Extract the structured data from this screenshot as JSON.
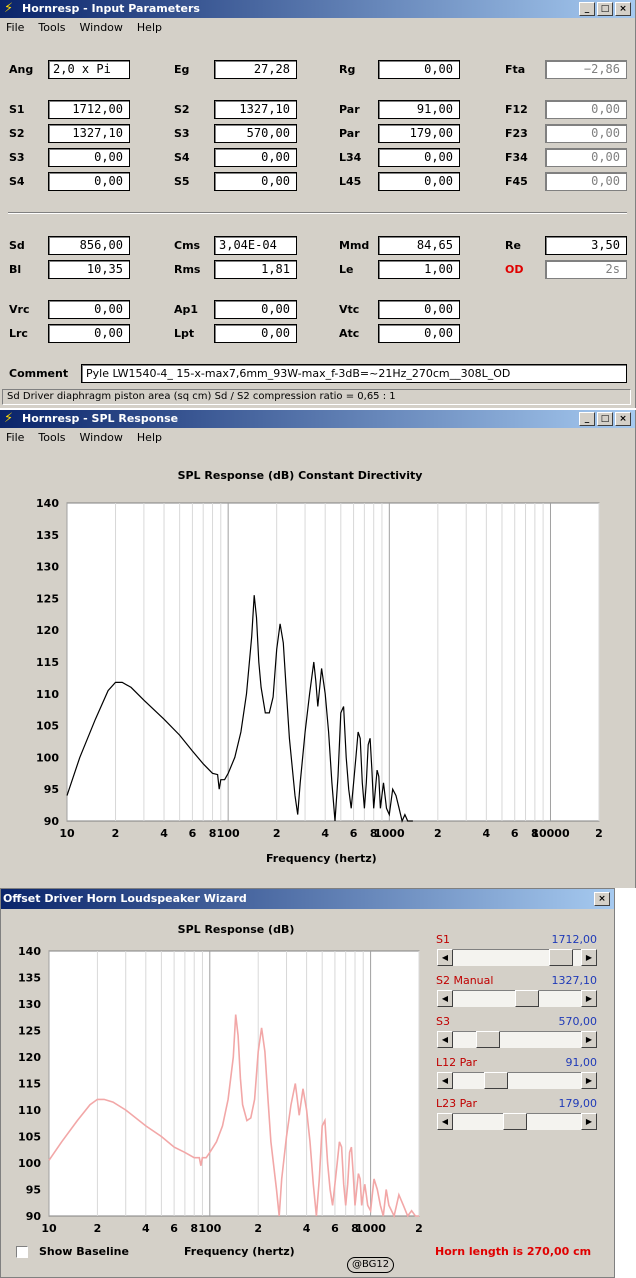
{
  "input_window": {
    "title": "Hornresp - Input Parameters",
    "menu": [
      "File",
      "Tools",
      "Window",
      "Help"
    ],
    "params": {
      "Ang": "2,0 x Pi",
      "Eg": "27,28",
      "Rg": "0,00",
      "Fta": "−2,86",
      "S1": "1712,00",
      "S2a": "1327,10",
      "Par1": "91,00",
      "F12": "0,00",
      "S2": "1327,10",
      "S3a": "570,00",
      "Par2": "179,00",
      "F23": "0,00",
      "S3": "0,00",
      "S4a": "0,00",
      "L34": "0,00",
      "F34": "0,00",
      "S4": "0,00",
      "S5": "0,00",
      "L45": "0,00",
      "F45": "0,00",
      "Sd": "856,00",
      "Cms": "3,04E-04",
      "Mmd": "84,65",
      "Re": "3,50",
      "Bl": "10,35",
      "Rms": "1,81",
      "Le": "1,00",
      "OD": "2s",
      "Vrc": "0,00",
      "Ap1": "0,00",
      "Vtc": "0,00",
      "Lrc": "0,00",
      "Lpt": "0,00",
      "Atc": "0,00"
    },
    "labels": {
      "Ang": "Ang",
      "Eg": "Eg",
      "Rg": "Rg",
      "Fta": "Fta",
      "S1": "S1",
      "S2a": "S2",
      "Par1": "Par",
      "F12": "F12",
      "S2": "S2",
      "S3a": "S3",
      "Par2": "Par",
      "F23": "F23",
      "S3": "S3",
      "S4a": "S4",
      "L34": "L34",
      "F34": "F34",
      "S4": "S4",
      "S5": "S5",
      "L45": "L45",
      "F45": "F45",
      "Sd": "Sd",
      "Cms": "Cms",
      "Mmd": "Mmd",
      "Re": "Re",
      "Bl": "Bl",
      "Rms": "Rms",
      "Le": "Le",
      "OD": "OD",
      "Vrc": "Vrc",
      "Ap1": "Ap1",
      "Vtc": "Vtc",
      "Lrc": "Lrc",
      "Lpt": "Lpt",
      "Atc": "Atc"
    },
    "comment_label": "Comment",
    "comment": "Pyle LW1540-4_ 15-x-max7,6mm_93W-max_f-3dB=~21Hz_270cm__308L_OD",
    "status": "Sd   Driver diaphragm piston area  (sq cm)    Sd / S2 compression ratio = 0,65 : 1"
  },
  "spl_window": {
    "title": "Hornresp - SPL Response",
    "menu": [
      "File",
      "Tools",
      "Window",
      "Help"
    ],
    "chart_title": "SPL Response (dB)    Constant Directivity",
    "xlabel": "Frequency (hertz)"
  },
  "wizard": {
    "title": "Offset Driver Horn Loudspeaker Wizard",
    "chart_title": "SPL Response (dB)",
    "xlabel": "Frequency (hertz)",
    "show_baseline": "Show Baseline",
    "horn_length": "Horn length is 270,00 cm",
    "watermark": "@BG12",
    "sliders": [
      {
        "label": "S1",
        "value": "1712,00",
        "pos": 0.92
      },
      {
        "label": "S2  Manual",
        "value": "1327,10",
        "pos": 0.6
      },
      {
        "label": "S3",
        "value": "570,00",
        "pos": 0.22
      },
      {
        "label": "L12  Par",
        "value": "91,00",
        "pos": 0.3
      },
      {
        "label": "L23  Par",
        "value": "179,00",
        "pos": 0.48
      }
    ]
  },
  "chart_data": [
    {
      "type": "line",
      "title": "SPL Response (dB)    Constant Directivity",
      "xlabel": "Frequency (hertz)",
      "ylabel": "",
      "xscale": "log",
      "xlim": [
        10,
        20000
      ],
      "ylim": [
        90,
        140
      ],
      "yticks": [
        90,
        95,
        100,
        105,
        110,
        115,
        120,
        125,
        130,
        135,
        140
      ],
      "xtick_labels": [
        "10",
        "2",
        "4",
        "6",
        "8",
        "100",
        "2",
        "4",
        "6",
        "8",
        "1000",
        "2",
        "4",
        "6",
        "8",
        "10000",
        "2"
      ],
      "color": "#000000",
      "x": [
        10,
        12,
        15,
        18,
        20,
        22,
        25,
        30,
        40,
        50,
        60,
        70,
        80,
        86,
        88,
        90,
        95,
        100,
        110,
        120,
        130,
        140,
        145,
        150,
        155,
        160,
        170,
        180,
        190,
        200,
        210,
        220,
        230,
        240,
        260,
        270,
        280,
        300,
        320,
        340,
        350,
        360,
        380,
        400,
        420,
        440,
        460,
        480,
        500,
        520,
        540,
        560,
        580,
        600,
        620,
        640,
        660,
        680,
        700,
        720,
        740,
        760,
        780,
        800,
        820,
        840,
        860,
        880,
        900,
        920,
        940,
        960,
        1000,
        1050,
        1100,
        1150,
        1200,
        1250,
        1300,
        1400
      ],
      "y": [
        94,
        100,
        106,
        110.5,
        111.8,
        111.8,
        111,
        109,
        106,
        103.5,
        101,
        99,
        97.5,
        97.3,
        95,
        96.5,
        96.5,
        97.5,
        100,
        104,
        110,
        119,
        125.5,
        122,
        115,
        111,
        107,
        107,
        109.5,
        117,
        121,
        118,
        110,
        103,
        94,
        91,
        96,
        104,
        110,
        115,
        112,
        108,
        114,
        110,
        104,
        96,
        90,
        97,
        107,
        108,
        100,
        95,
        92,
        96,
        100,
        104,
        103,
        96,
        92,
        96,
        102,
        103,
        98,
        92,
        95,
        98,
        97,
        92,
        94,
        96,
        94,
        92,
        91,
        95,
        94,
        92,
        90,
        91,
        90,
        89
      ]
    },
    {
      "type": "line",
      "title": "SPL Response (dB)",
      "xlabel": "Frequency (hertz)",
      "ylabel": "",
      "xscale": "log",
      "xlim": [
        10,
        2000
      ],
      "ylim": [
        90,
        140
      ],
      "yticks": [
        90,
        95,
        100,
        105,
        110,
        115,
        120,
        125,
        130,
        135,
        140
      ],
      "xtick_labels": [
        "10",
        "2",
        "4",
        "6",
        "8",
        "100",
        "2",
        "4",
        "6",
        "8",
        "1000",
        "2"
      ],
      "color": "#f2a7a7",
      "x": [
        10,
        12,
        15,
        18,
        20,
        22,
        25,
        30,
        40,
        50,
        60,
        70,
        80,
        86,
        88,
        90,
        95,
        100,
        110,
        120,
        130,
        140,
        145,
        150,
        155,
        160,
        170,
        180,
        190,
        200,
        210,
        220,
        230,
        240,
        260,
        270,
        280,
        300,
        320,
        340,
        350,
        360,
        380,
        400,
        420,
        440,
        460,
        480,
        500,
        520,
        540,
        560,
        580,
        600,
        620,
        640,
        660,
        680,
        700,
        720,
        740,
        760,
        780,
        800,
        820,
        840,
        860,
        880,
        900,
        920,
        940,
        960,
        1000,
        1050,
        1100,
        1150,
        1200,
        1250,
        1300,
        1400,
        1500,
        1600,
        1700,
        1800,
        1900,
        2000
      ],
      "y": [
        100.5,
        104,
        108,
        111,
        112,
        112,
        111.5,
        110,
        107,
        105,
        103,
        102,
        101,
        101,
        99.5,
        101,
        101,
        102,
        104,
        107,
        112,
        120,
        128,
        124,
        116,
        111,
        108,
        108.5,
        112,
        121,
        125.5,
        121,
        112,
        104,
        95,
        90,
        97,
        105,
        111,
        115,
        112,
        109,
        114,
        110,
        104,
        96,
        90,
        97,
        107,
        108,
        100,
        95,
        92,
        96,
        100,
        104,
        103,
        96,
        92,
        96,
        102,
        103,
        98,
        92,
        95,
        98,
        97,
        92,
        94,
        96,
        94,
        92,
        91,
        97,
        95,
        92,
        90,
        95,
        92,
        90,
        94,
        92,
        90,
        91,
        90,
        90
      ]
    }
  ]
}
